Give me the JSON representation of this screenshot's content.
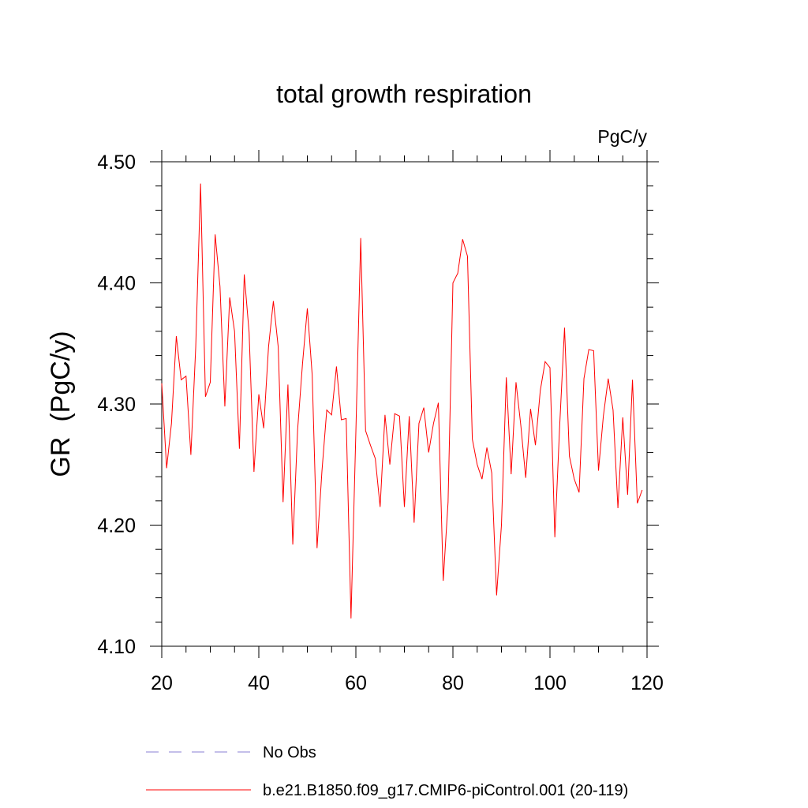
{
  "chart_data": {
    "type": "line",
    "title": "total growth respiration",
    "units_label": "PgC/y",
    "ylabel": "GR  (PgC/y)",
    "xlabel": "",
    "xlim": [
      20,
      120
    ],
    "ylim": [
      4.1,
      4.5
    ],
    "x_ticks": [
      "20",
      "40",
      "60",
      "80",
      "100",
      "120"
    ],
    "y_ticks": [
      "4.10",
      "4.20",
      "4.30",
      "4.40",
      "4.50"
    ],
    "x_tick_values": [
      20,
      40,
      60,
      80,
      100,
      120
    ],
    "y_tick_values": [
      4.1,
      4.2,
      4.3,
      4.4,
      4.5
    ],
    "series": [
      {
        "name": "b.e21.B1850.f09_g17.CMIP6-piControl.001 (20-119)",
        "color": "#ff0000",
        "x_start": 20,
        "values": [
          4.317,
          4.247,
          4.284,
          4.356,
          4.32,
          4.323,
          4.258,
          4.347,
          4.482,
          4.306,
          4.318,
          4.44,
          4.397,
          4.298,
          4.388,
          4.36,
          4.263,
          4.407,
          4.359,
          4.244,
          4.308,
          4.28,
          4.347,
          4.385,
          4.347,
          4.219,
          4.316,
          4.184,
          4.279,
          4.333,
          4.379,
          4.324,
          4.181,
          4.244,
          4.295,
          4.291,
          4.331,
          4.287,
          4.288,
          4.123,
          4.277,
          4.437,
          4.278,
          4.266,
          4.255,
          4.215,
          4.291,
          4.25,
          4.292,
          4.29,
          4.215,
          4.29,
          4.202,
          4.284,
          4.297,
          4.26,
          4.284,
          4.301,
          4.154,
          4.219,
          4.4,
          4.408,
          4.436,
          4.422,
          4.271,
          4.25,
          4.238,
          4.264,
          4.243,
          4.142,
          4.2,
          4.322,
          4.242,
          4.318,
          4.282,
          4.239,
          4.296,
          4.266,
          4.311,
          4.335,
          4.33,
          4.19,
          4.282,
          4.363,
          4.257,
          4.238,
          4.227,
          4.321,
          4.345,
          4.344,
          4.245,
          4.29,
          4.321,
          4.295,
          4.214,
          4.289,
          4.225,
          4.32,
          4.218,
          4.229
        ]
      }
    ],
    "legend": [
      {
        "label": "No Obs",
        "style": "dashed",
        "color": "#8a7fd6"
      },
      {
        "label": "b.e21.B1850.f09_g17.CMIP6-piControl.001 (20-119)",
        "style": "solid",
        "color": "#ff0000"
      }
    ],
    "legend_position": "bottom"
  }
}
